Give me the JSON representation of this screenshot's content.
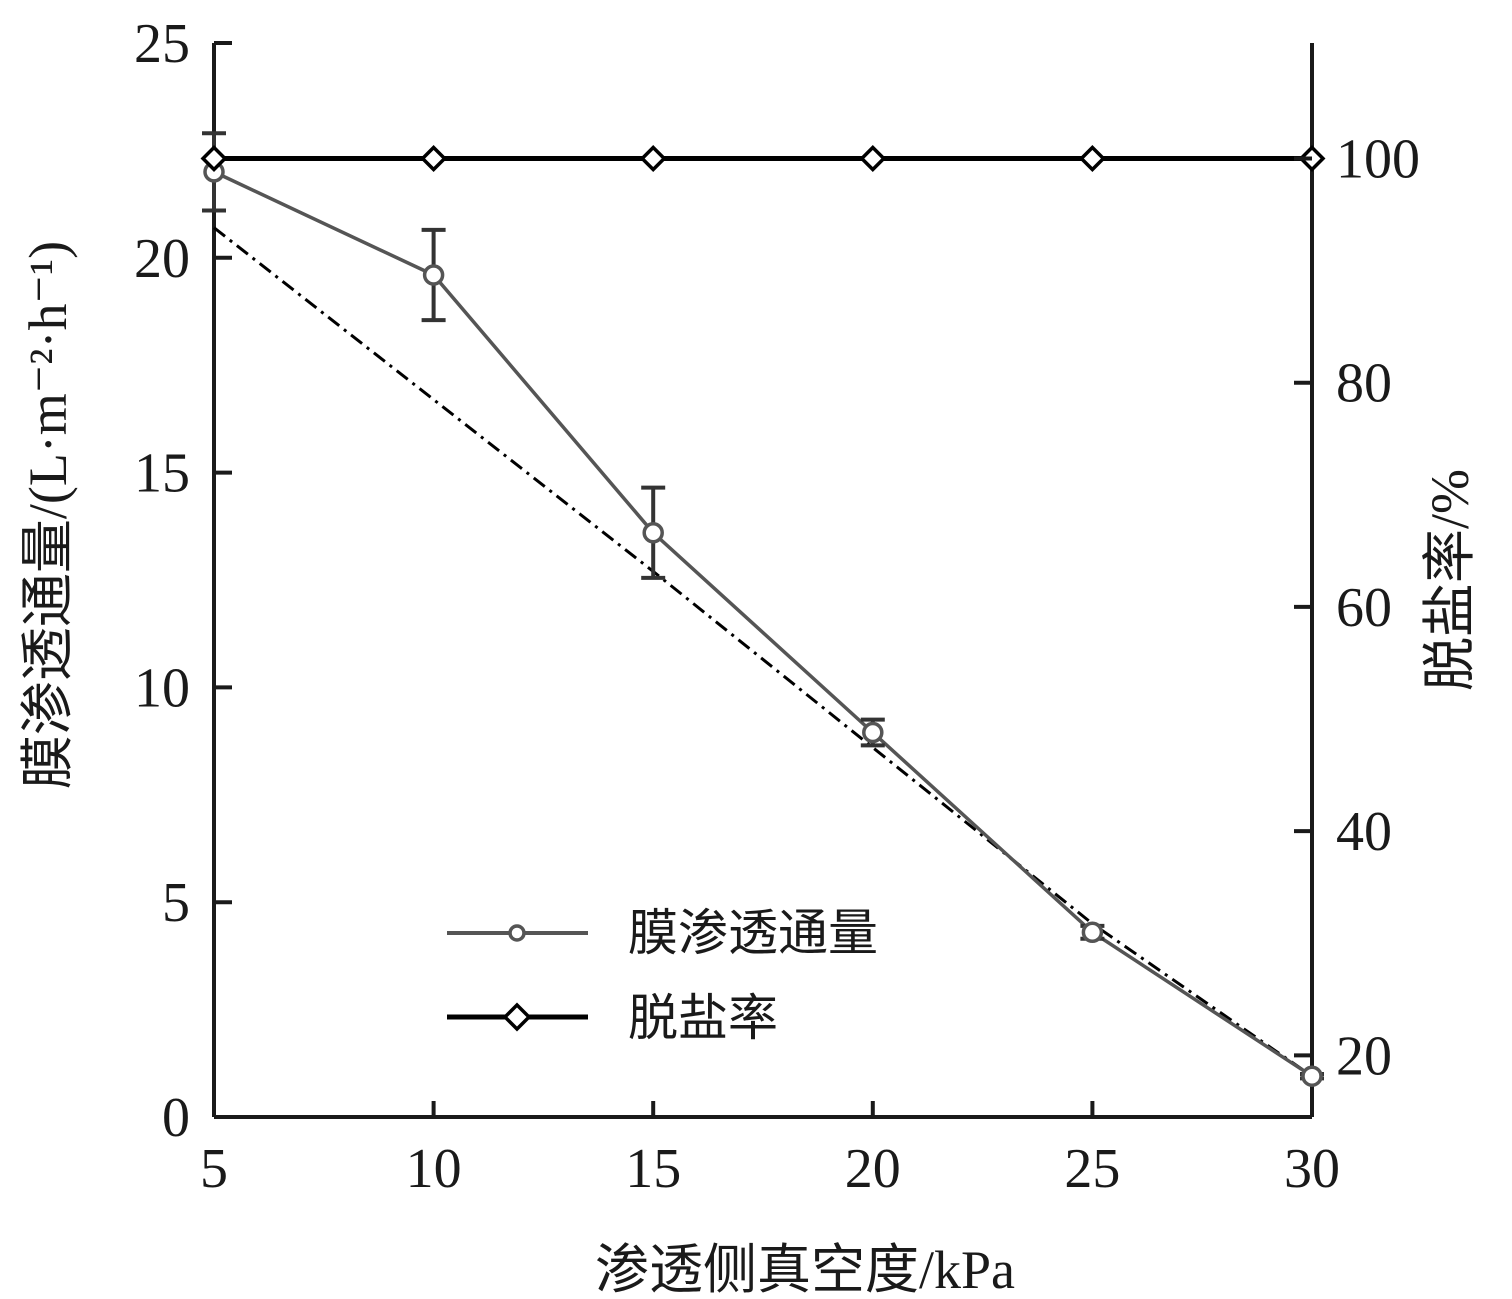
{
  "chart_data": {
    "type": "line",
    "x": [
      5,
      10,
      15,
      20,
      25,
      30
    ],
    "xlabel": "渗透侧真空度/kPa",
    "xlim": [
      5,
      30
    ],
    "xticks": [
      "5",
      "10",
      "15",
      "20",
      "25",
      "30"
    ],
    "ylabel": "膜渗透通量/(L·m⁻²·h⁻¹)",
    "ylim": [
      0,
      25
    ],
    "yticks": [
      "0",
      "5",
      "10",
      "15",
      "20",
      "25"
    ],
    "y2label": "脱盐率/%",
    "y2lim": [
      14.5,
      110.3
    ],
    "y2ticks": [
      "20",
      "40",
      "60",
      "80",
      "100"
    ],
    "series": [
      {
        "name": "膜渗透通量",
        "axis": "left",
        "values": [
          22.0,
          19.6,
          13.6,
          8.95,
          4.3,
          0.95
        ],
        "errors": [
          0.9,
          1.05,
          1.05,
          0.3,
          0.15,
          0.05
        ],
        "color": "#555555",
        "marker": "circle"
      },
      {
        "name": "脱盐率",
        "axis": "right",
        "values": [
          100,
          100,
          100,
          100,
          100,
          100
        ],
        "color": "#000000",
        "marker": "diamond"
      }
    ],
    "trendline": {
      "style": "dash-dot",
      "x": [
        5,
        10,
        15,
        20,
        25,
        30
      ],
      "values": [
        20.7,
        16.7,
        12.7,
        8.6,
        4.5,
        0.95
      ],
      "color": "#000000"
    },
    "legend": {
      "position": "bottom-center"
    },
    "grid": false
  }
}
